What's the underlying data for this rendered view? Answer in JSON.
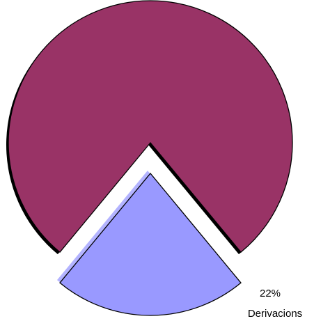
{
  "chart_data": {
    "type": "pie",
    "categories": [
      null,
      "Derivacions"
    ],
    "values": [
      78,
      22
    ],
    "value_labels": [
      null,
      "22%"
    ],
    "colors": [
      "#993366",
      "#9999ff"
    ]
  }
}
